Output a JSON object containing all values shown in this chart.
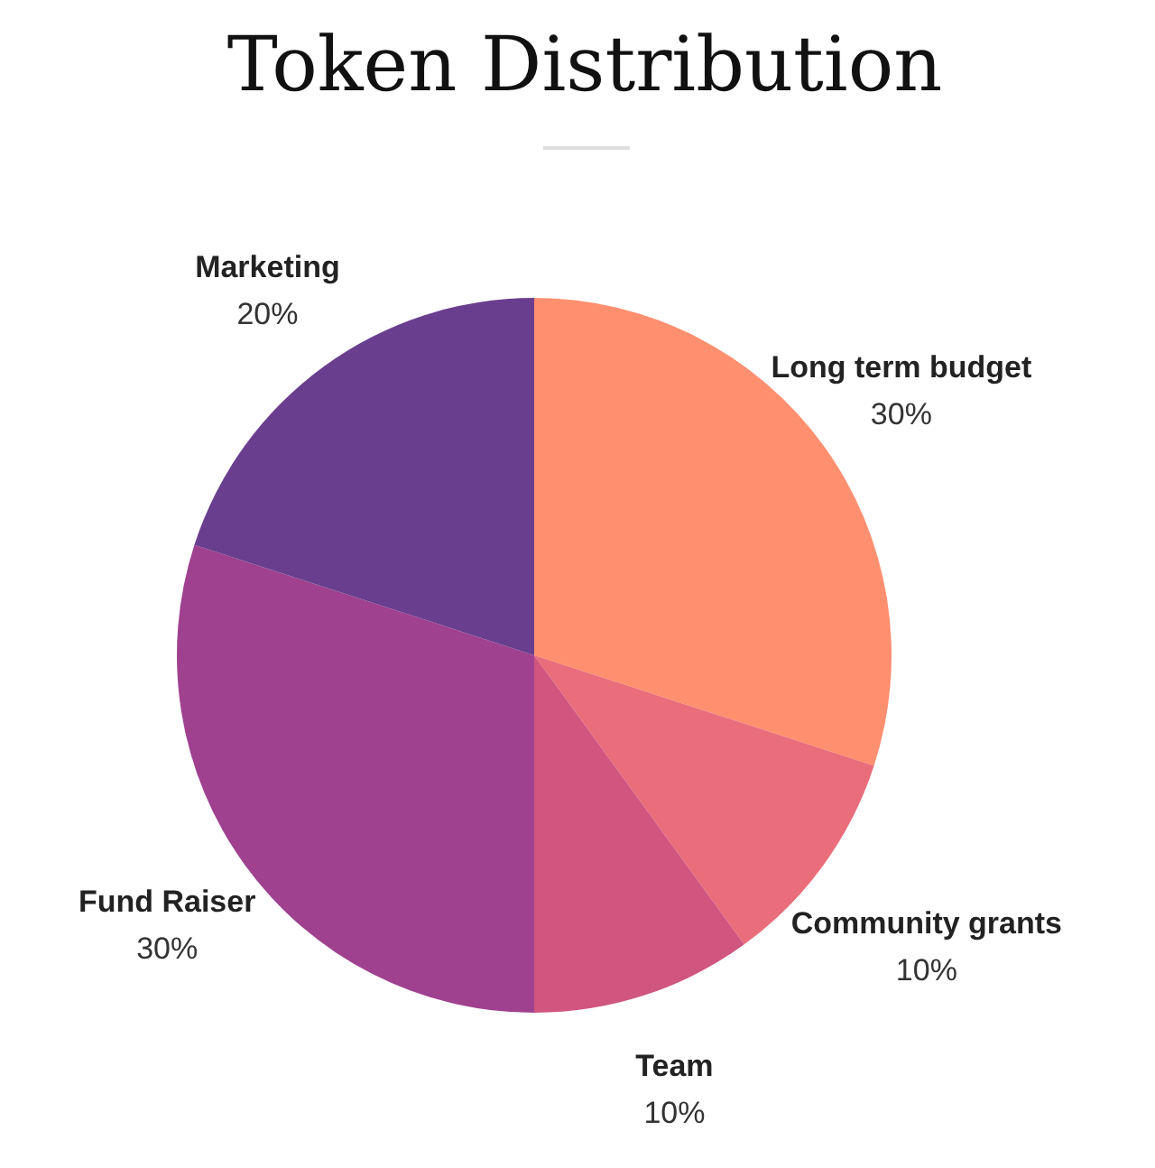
{
  "chart_data": {
    "type": "pie",
    "title": "Token Distribution",
    "categories": [
      "Long term budget",
      "Community grants",
      "Team",
      "Fund Raiser",
      "Marketing"
    ],
    "values": [
      30,
      10,
      10,
      30,
      20
    ],
    "value_labels": [
      "30%",
      "10%",
      "10%",
      "30%",
      "20%"
    ],
    "colors": [
      "#fe8f6f",
      "#e96d7b",
      "#d0557f",
      "#9f418f",
      "#6a3e8e"
    ]
  }
}
